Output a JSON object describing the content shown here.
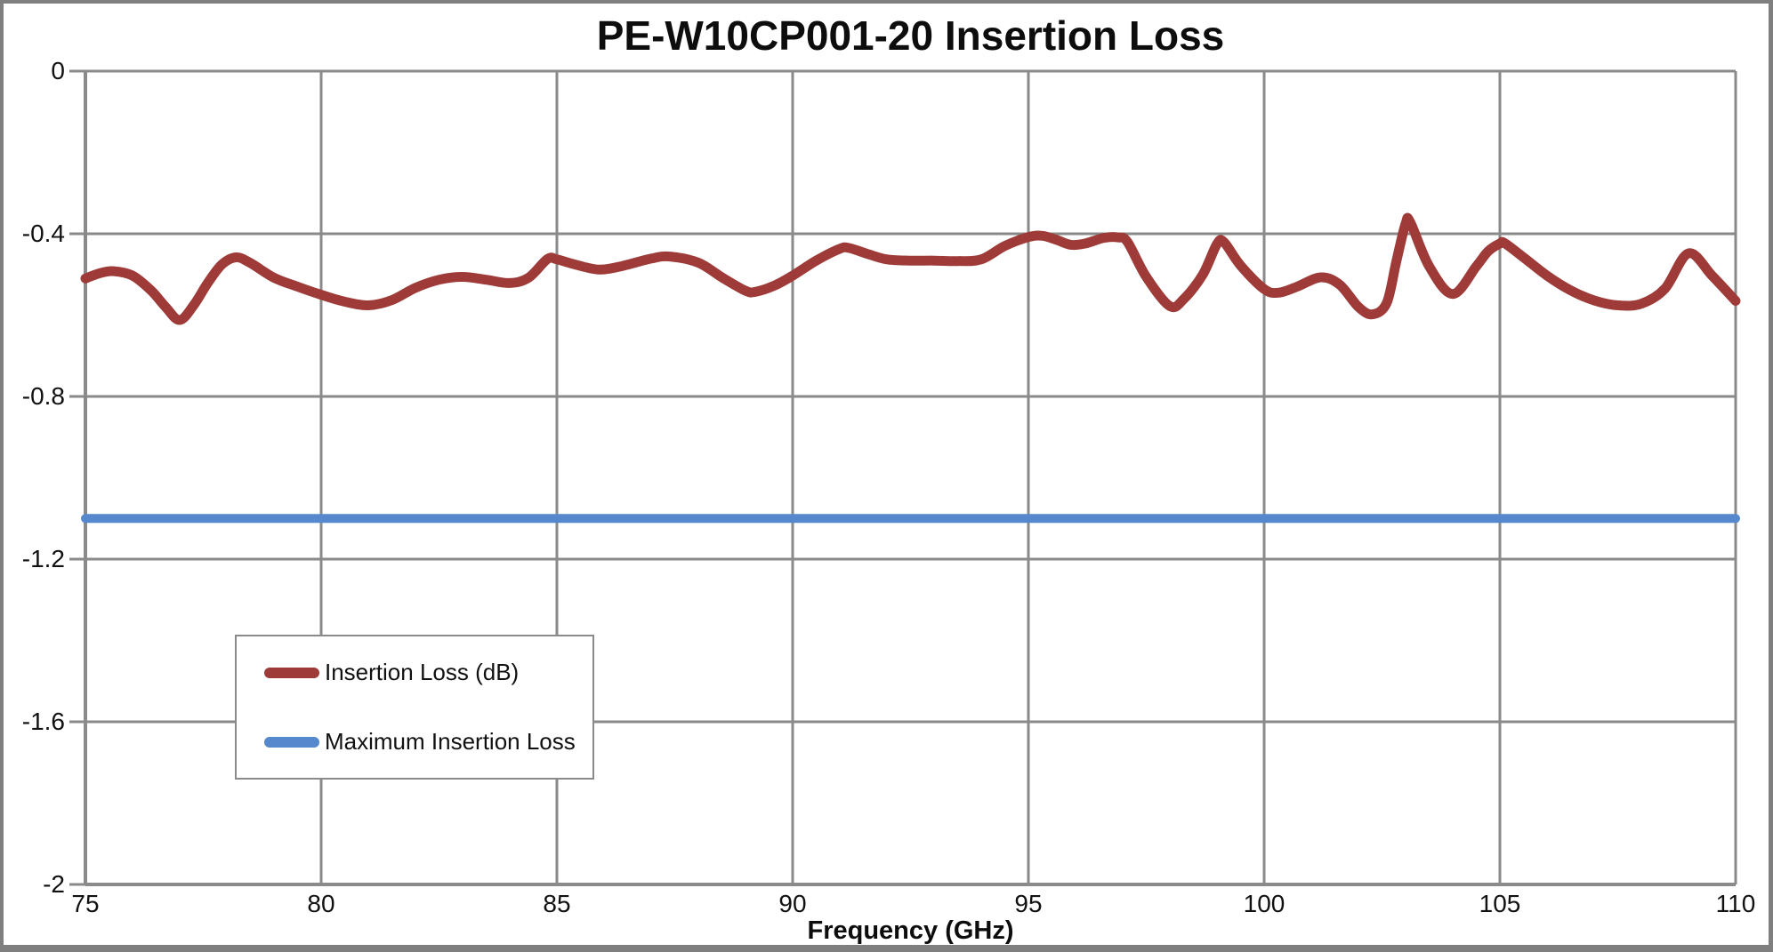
{
  "title": "PE-W10CP001-20 Insertion Loss",
  "x_axis_title": "Frequency (GHz)",
  "colors": {
    "insertion_loss_line": "#9E3B38",
    "max_insertion_loss_line": "#5588CD",
    "gridline": "#8A8A8A",
    "frame_border": "#7F7F7F",
    "background": "#FFFFFF",
    "text": "#0D0D0D"
  },
  "legend": {
    "entries": [
      {
        "label": "Insertion Loss (dB)",
        "color": "#9E3B38"
      },
      {
        "label": "Maximum Insertion Loss",
        "color": "#5588CD"
      }
    ]
  },
  "chart_data": {
    "type": "line",
    "title": "PE-W10CP001-20 Insertion Loss",
    "xlabel": "Frequency (GHz)",
    "ylabel": "",
    "xlim": [
      75,
      110
    ],
    "ylim": [
      -2,
      0
    ],
    "grid": true,
    "legend_position": "inside-lower-left",
    "x_ticks": [
      75,
      80,
      85,
      90,
      95,
      100,
      105,
      110
    ],
    "x_tick_labels": [
      "75",
      "80",
      "85",
      "90",
      "95",
      "100",
      "105",
      "110"
    ],
    "y_ticks": [
      0,
      -0.4,
      -0.8,
      -1.2,
      -1.6,
      -2
    ],
    "y_tick_labels": [
      "0",
      "-0.4",
      "-0.8",
      "-1.2",
      "-1.6",
      "-2"
    ],
    "series": [
      {
        "name": "Insertion Loss (dB)",
        "color": "#9E3B38",
        "stroke_width": 11,
        "smooth": true,
        "x": [
          75,
          75.3,
          75.6,
          76,
          76.4,
          76.7,
          77,
          77.3,
          77.6,
          77.9,
          78.2,
          78.5,
          79,
          79.5,
          80,
          80.5,
          81,
          81.5,
          82,
          82.5,
          83,
          83.5,
          84,
          84.4,
          84.8,
          85,
          85.4,
          85.9,
          86.4,
          87,
          87.4,
          88,
          88.5,
          89,
          89.2,
          89.6,
          90,
          90.5,
          91,
          91.2,
          91.6,
          92,
          92.5,
          93,
          93.5,
          94,
          94.5,
          95,
          95.3,
          95.6,
          95.9,
          96.2,
          96.6,
          96.9,
          97.1,
          97.5,
          98,
          98.3,
          98.7,
          99,
          99.15,
          99.5,
          100,
          100.3,
          100.7,
          101.2,
          101.6,
          102,
          102.3,
          102.6,
          102.8,
          103,
          103.1,
          103.5,
          104,
          104.5,
          104.75,
          105,
          105.1,
          105.5,
          106,
          106.5,
          107,
          107.5,
          108,
          108.5,
          109,
          109.5,
          110
        ],
        "y": [
          -0.51,
          -0.497,
          -0.492,
          -0.503,
          -0.54,
          -0.58,
          -0.612,
          -0.575,
          -0.52,
          -0.475,
          -0.458,
          -0.472,
          -0.508,
          -0.53,
          -0.55,
          -0.567,
          -0.576,
          -0.563,
          -0.533,
          -0.513,
          -0.506,
          -0.513,
          -0.521,
          -0.508,
          -0.462,
          -0.463,
          -0.476,
          -0.488,
          -0.479,
          -0.461,
          -0.456,
          -0.471,
          -0.507,
          -0.54,
          -0.543,
          -0.528,
          -0.503,
          -0.466,
          -0.437,
          -0.435,
          -0.45,
          -0.463,
          -0.466,
          -0.466,
          -0.467,
          -0.463,
          -0.43,
          -0.408,
          -0.405,
          -0.415,
          -0.427,
          -0.424,
          -0.41,
          -0.409,
          -0.42,
          -0.506,
          -0.578,
          -0.56,
          -0.5,
          -0.425,
          -0.421,
          -0.478,
          -0.536,
          -0.545,
          -0.53,
          -0.507,
          -0.525,
          -0.58,
          -0.598,
          -0.57,
          -0.47,
          -0.375,
          -0.372,
          -0.48,
          -0.548,
          -0.48,
          -0.443,
          -0.424,
          -0.423,
          -0.458,
          -0.503,
          -0.539,
          -0.564,
          -0.576,
          -0.572,
          -0.535,
          -0.448,
          -0.503,
          -0.565
        ]
      },
      {
        "name": "Maximum Insertion Loss",
        "color": "#5588CD",
        "stroke_width": 10,
        "smooth": false,
        "x": [
          75,
          110
        ],
        "y": [
          -1.1,
          -1.1
        ]
      }
    ]
  }
}
